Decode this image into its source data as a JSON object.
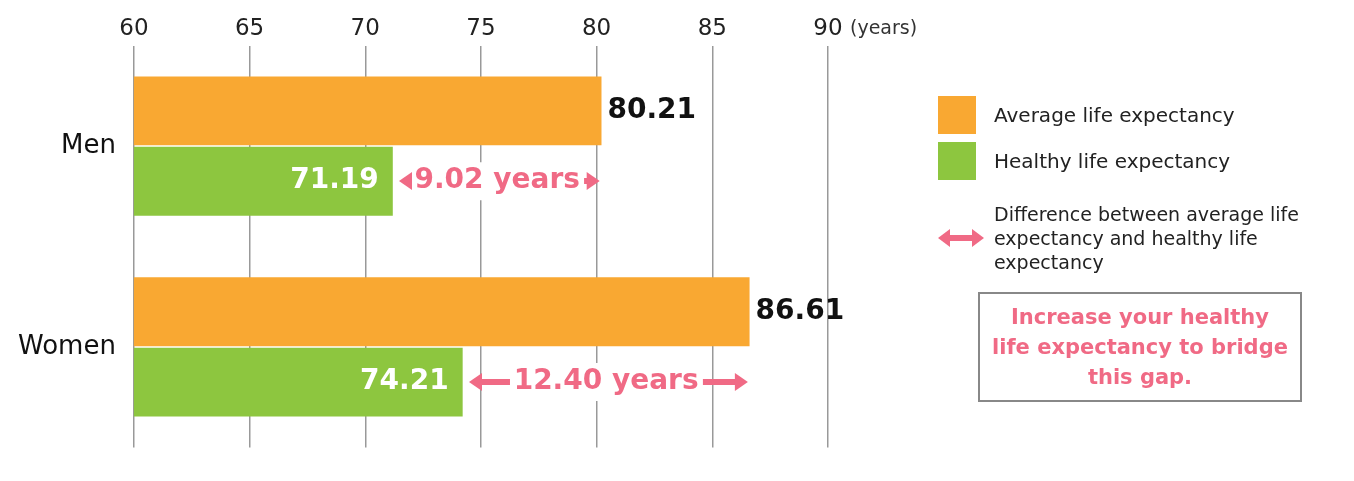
{
  "chart_data": {
    "type": "bar",
    "orientation": "horizontal",
    "xlabel": "(years)",
    "categories": [
      "Men",
      "Women"
    ],
    "series": [
      {
        "name": "Average life expectancy",
        "color": "#f9a832",
        "values": [
          80.21,
          86.61
        ]
      },
      {
        "name": "Healthy life expectancy",
        "color": "#8dc63f",
        "values": [
          71.19,
          74.21
        ]
      }
    ],
    "xlim": [
      60,
      90
    ],
    "xticks": [
      60,
      65,
      70,
      75,
      80,
      85,
      90
    ],
    "grid": "x",
    "legend": "right",
    "data_labels": true,
    "annotations": [
      {
        "text": "9.02 years",
        "x": 75.7,
        "y": "Men"
      },
      {
        "text": "12.40 years",
        "x": 80.41,
        "y": "Women"
      },
      "Difference between average life expectancy and healthy life expectancy",
      "Increase your healthy life expectancy to bridge this gap."
    ]
  }
}
